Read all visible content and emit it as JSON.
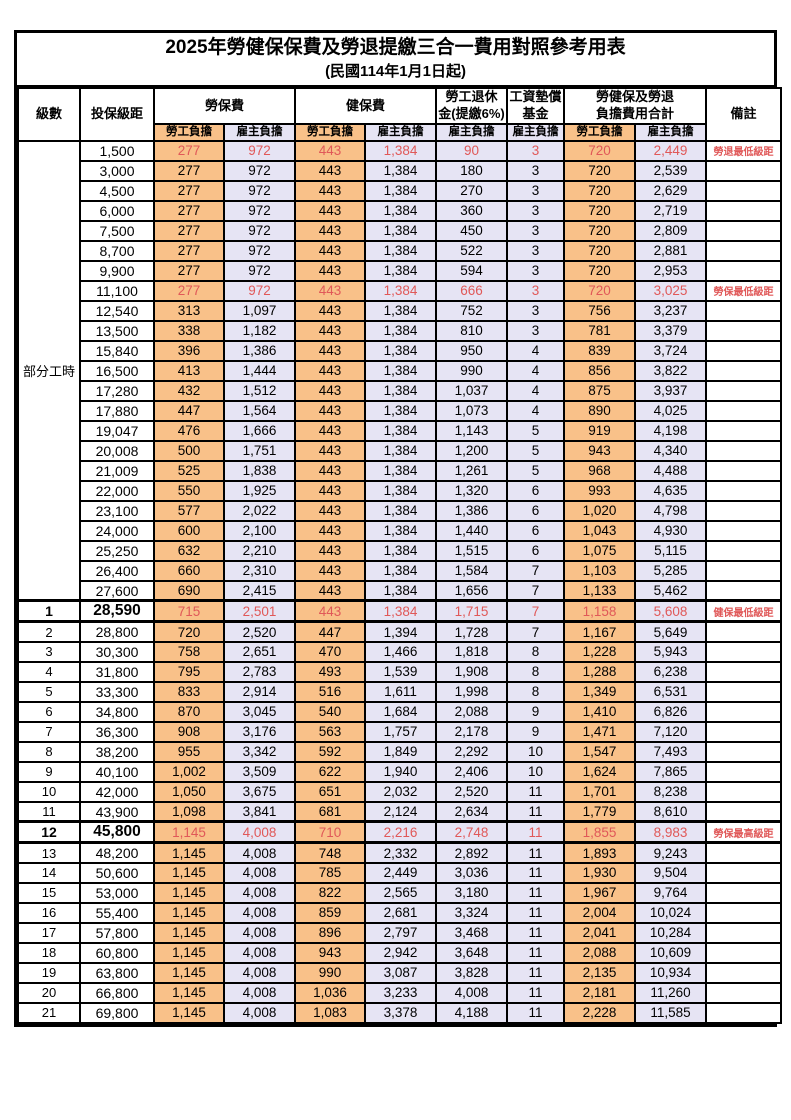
{
  "title": "2025年勞健保保費及勞退提繳三合一費用對照參考用表",
  "subtitle": "(民國114年1月1日起)",
  "part_time_label": "部分工時",
  "colors": {
    "worker_bg": "#F9C189",
    "employer_bg": "#E6E4F4",
    "highlight_red": "#E05858",
    "border": "#000000"
  },
  "header": {
    "level": "級數",
    "salary": "投保級距",
    "labor": "勞保費",
    "health": "健保費",
    "pension_line1": "勞工退休",
    "pension_line2": "金(提繳6%)",
    "wage_fund_line1": "工資墊償",
    "wage_fund_line2": "基金",
    "total_line1": "勞健保及勞退",
    "total_line2": "負擔費用合計",
    "note": "備註",
    "worker": "勞工負擔",
    "employer": "雇主負擔"
  },
  "rows": [
    {
      "lv": "",
      "sal": "1,500",
      "lw": "277",
      "le": "972",
      "hw": "443",
      "he": "1,384",
      "pe": "90",
      "wf": "3",
      "tw": "720",
      "te": "2,449",
      "note": "勞退最低級距",
      "red": true
    },
    {
      "lv": "",
      "sal": "3,000",
      "lw": "277",
      "le": "972",
      "hw": "443",
      "he": "1,384",
      "pe": "180",
      "wf": "3",
      "tw": "720",
      "te": "2,539",
      "note": ""
    },
    {
      "lv": "",
      "sal": "4,500",
      "lw": "277",
      "le": "972",
      "hw": "443",
      "he": "1,384",
      "pe": "270",
      "wf": "3",
      "tw": "720",
      "te": "2,629",
      "note": ""
    },
    {
      "lv": "",
      "sal": "6,000",
      "lw": "277",
      "le": "972",
      "hw": "443",
      "he": "1,384",
      "pe": "360",
      "wf": "3",
      "tw": "720",
      "te": "2,719",
      "note": ""
    },
    {
      "lv": "",
      "sal": "7,500",
      "lw": "277",
      "le": "972",
      "hw": "443",
      "he": "1,384",
      "pe": "450",
      "wf": "3",
      "tw": "720",
      "te": "2,809",
      "note": ""
    },
    {
      "lv": "",
      "sal": "8,700",
      "lw": "277",
      "le": "972",
      "hw": "443",
      "he": "1,384",
      "pe": "522",
      "wf": "3",
      "tw": "720",
      "te": "2,881",
      "note": ""
    },
    {
      "lv": "",
      "sal": "9,900",
      "lw": "277",
      "le": "972",
      "hw": "443",
      "he": "1,384",
      "pe": "594",
      "wf": "3",
      "tw": "720",
      "te": "2,953",
      "note": ""
    },
    {
      "lv": "",
      "sal": "11,100",
      "lw": "277",
      "le": "972",
      "hw": "443",
      "he": "1,384",
      "pe": "666",
      "wf": "3",
      "tw": "720",
      "te": "3,025",
      "note": "勞保最低級距",
      "red": true
    },
    {
      "lv": "",
      "sal": "12,540",
      "lw": "313",
      "le": "1,097",
      "hw": "443",
      "he": "1,384",
      "pe": "752",
      "wf": "3",
      "tw": "756",
      "te": "3,237",
      "note": ""
    },
    {
      "lv": "",
      "sal": "13,500",
      "lw": "338",
      "le": "1,182",
      "hw": "443",
      "he": "1,384",
      "pe": "810",
      "wf": "3",
      "tw": "781",
      "te": "3,379",
      "note": ""
    },
    {
      "lv": "",
      "sal": "15,840",
      "lw": "396",
      "le": "1,386",
      "hw": "443",
      "he": "1,384",
      "pe": "950",
      "wf": "4",
      "tw": "839",
      "te": "3,724",
      "note": ""
    },
    {
      "lv": "",
      "sal": "16,500",
      "lw": "413",
      "le": "1,444",
      "hw": "443",
      "he": "1,384",
      "pe": "990",
      "wf": "4",
      "tw": "856",
      "te": "3,822",
      "note": ""
    },
    {
      "lv": "",
      "sal": "17,280",
      "lw": "432",
      "le": "1,512",
      "hw": "443",
      "he": "1,384",
      "pe": "1,037",
      "wf": "4",
      "tw": "875",
      "te": "3,937",
      "note": ""
    },
    {
      "lv": "",
      "sal": "17,880",
      "lw": "447",
      "le": "1,564",
      "hw": "443",
      "he": "1,384",
      "pe": "1,073",
      "wf": "4",
      "tw": "890",
      "te": "4,025",
      "note": ""
    },
    {
      "lv": "",
      "sal": "19,047",
      "lw": "476",
      "le": "1,666",
      "hw": "443",
      "he": "1,384",
      "pe": "1,143",
      "wf": "5",
      "tw": "919",
      "te": "4,198",
      "note": ""
    },
    {
      "lv": "",
      "sal": "20,008",
      "lw": "500",
      "le": "1,751",
      "hw": "443",
      "he": "1,384",
      "pe": "1,200",
      "wf": "5",
      "tw": "943",
      "te": "4,340",
      "note": ""
    },
    {
      "lv": "",
      "sal": "21,009",
      "lw": "525",
      "le": "1,838",
      "hw": "443",
      "he": "1,384",
      "pe": "1,261",
      "wf": "5",
      "tw": "968",
      "te": "4,488",
      "note": ""
    },
    {
      "lv": "",
      "sal": "22,000",
      "lw": "550",
      "le": "1,925",
      "hw": "443",
      "he": "1,384",
      "pe": "1,320",
      "wf": "6",
      "tw": "993",
      "te": "4,635",
      "note": ""
    },
    {
      "lv": "",
      "sal": "23,100",
      "lw": "577",
      "le": "2,022",
      "hw": "443",
      "he": "1,384",
      "pe": "1,386",
      "wf": "6",
      "tw": "1,020",
      "te": "4,798",
      "note": ""
    },
    {
      "lv": "",
      "sal": "24,000",
      "lw": "600",
      "le": "2,100",
      "hw": "443",
      "he": "1,384",
      "pe": "1,440",
      "wf": "6",
      "tw": "1,043",
      "te": "4,930",
      "note": ""
    },
    {
      "lv": "",
      "sal": "25,250",
      "lw": "632",
      "le": "2,210",
      "hw": "443",
      "he": "1,384",
      "pe": "1,515",
      "wf": "6",
      "tw": "1,075",
      "te": "5,115",
      "note": ""
    },
    {
      "lv": "",
      "sal": "26,400",
      "lw": "660",
      "le": "2,310",
      "hw": "443",
      "he": "1,384",
      "pe": "1,584",
      "wf": "7",
      "tw": "1,103",
      "te": "5,285",
      "note": ""
    },
    {
      "lv": "",
      "sal": "27,600",
      "lw": "690",
      "le": "2,415",
      "hw": "443",
      "he": "1,384",
      "pe": "1,656",
      "wf": "7",
      "tw": "1,133",
      "te": "5,462",
      "note": ""
    },
    {
      "lv": "1",
      "sal": "28,590",
      "lw": "715",
      "le": "2,501",
      "hw": "443",
      "he": "1,384",
      "pe": "1,715",
      "wf": "7",
      "tw": "1,158",
      "te": "5,608",
      "note": "健保最低級距",
      "red": true,
      "sp": true
    },
    {
      "lv": "2",
      "sal": "28,800",
      "lw": "720",
      "le": "2,520",
      "hw": "447",
      "he": "1,394",
      "pe": "1,728",
      "wf": "7",
      "tw": "1,167",
      "te": "5,649",
      "note": ""
    },
    {
      "lv": "3",
      "sal": "30,300",
      "lw": "758",
      "le": "2,651",
      "hw": "470",
      "he": "1,466",
      "pe": "1,818",
      "wf": "8",
      "tw": "1,228",
      "te": "5,943",
      "note": ""
    },
    {
      "lv": "4",
      "sal": "31,800",
      "lw": "795",
      "le": "2,783",
      "hw": "493",
      "he": "1,539",
      "pe": "1,908",
      "wf": "8",
      "tw": "1,288",
      "te": "6,238",
      "note": ""
    },
    {
      "lv": "5",
      "sal": "33,300",
      "lw": "833",
      "le": "2,914",
      "hw": "516",
      "he": "1,611",
      "pe": "1,998",
      "wf": "8",
      "tw": "1,349",
      "te": "6,531",
      "note": ""
    },
    {
      "lv": "6",
      "sal": "34,800",
      "lw": "870",
      "le": "3,045",
      "hw": "540",
      "he": "1,684",
      "pe": "2,088",
      "wf": "9",
      "tw": "1,410",
      "te": "6,826",
      "note": ""
    },
    {
      "lv": "7",
      "sal": "36,300",
      "lw": "908",
      "le": "3,176",
      "hw": "563",
      "he": "1,757",
      "pe": "2,178",
      "wf": "9",
      "tw": "1,471",
      "te": "7,120",
      "note": ""
    },
    {
      "lv": "8",
      "sal": "38,200",
      "lw": "955",
      "le": "3,342",
      "hw": "592",
      "he": "1,849",
      "pe": "2,292",
      "wf": "10",
      "tw": "1,547",
      "te": "7,493",
      "note": ""
    },
    {
      "lv": "9",
      "sal": "40,100",
      "lw": "1,002",
      "le": "3,509",
      "hw": "622",
      "he": "1,940",
      "pe": "2,406",
      "wf": "10",
      "tw": "1,624",
      "te": "7,865",
      "note": ""
    },
    {
      "lv": "10",
      "sal": "42,000",
      "lw": "1,050",
      "le": "3,675",
      "hw": "651",
      "he": "2,032",
      "pe": "2,520",
      "wf": "11",
      "tw": "1,701",
      "te": "8,238",
      "note": ""
    },
    {
      "lv": "11",
      "sal": "43,900",
      "lw": "1,098",
      "le": "3,841",
      "hw": "681",
      "he": "2,124",
      "pe": "2,634",
      "wf": "11",
      "tw": "1,779",
      "te": "8,610",
      "note": ""
    },
    {
      "lv": "12",
      "sal": "45,800",
      "lw": "1,145",
      "le": "4,008",
      "hw": "710",
      "he": "2,216",
      "pe": "2,748",
      "wf": "11",
      "tw": "1,855",
      "te": "8,983",
      "note": "勞保最高級距",
      "red": true,
      "sp": true
    },
    {
      "lv": "13",
      "sal": "48,200",
      "lw": "1,145",
      "le": "4,008",
      "hw": "748",
      "he": "2,332",
      "pe": "2,892",
      "wf": "11",
      "tw": "1,893",
      "te": "9,243",
      "note": ""
    },
    {
      "lv": "14",
      "sal": "50,600",
      "lw": "1,145",
      "le": "4,008",
      "hw": "785",
      "he": "2,449",
      "pe": "3,036",
      "wf": "11",
      "tw": "1,930",
      "te": "9,504",
      "note": ""
    },
    {
      "lv": "15",
      "sal": "53,000",
      "lw": "1,145",
      "le": "4,008",
      "hw": "822",
      "he": "2,565",
      "pe": "3,180",
      "wf": "11",
      "tw": "1,967",
      "te": "9,764",
      "note": ""
    },
    {
      "lv": "16",
      "sal": "55,400",
      "lw": "1,145",
      "le": "4,008",
      "hw": "859",
      "he": "2,681",
      "pe": "3,324",
      "wf": "11",
      "tw": "2,004",
      "te": "10,024",
      "note": ""
    },
    {
      "lv": "17",
      "sal": "57,800",
      "lw": "1,145",
      "le": "4,008",
      "hw": "896",
      "he": "2,797",
      "pe": "3,468",
      "wf": "11",
      "tw": "2,041",
      "te": "10,284",
      "note": ""
    },
    {
      "lv": "18",
      "sal": "60,800",
      "lw": "1,145",
      "le": "4,008",
      "hw": "943",
      "he": "2,942",
      "pe": "3,648",
      "wf": "11",
      "tw": "2,088",
      "te": "10,609",
      "note": ""
    },
    {
      "lv": "19",
      "sal": "63,800",
      "lw": "1,145",
      "le": "4,008",
      "hw": "990",
      "he": "3,087",
      "pe": "3,828",
      "wf": "11",
      "tw": "2,135",
      "te": "10,934",
      "note": ""
    },
    {
      "lv": "20",
      "sal": "66,800",
      "lw": "1,145",
      "le": "4,008",
      "hw": "1,036",
      "he": "3,233",
      "pe": "4,008",
      "wf": "11",
      "tw": "2,181",
      "te": "11,260",
      "note": ""
    },
    {
      "lv": "21",
      "sal": "69,800",
      "lw": "1,145",
      "le": "4,008",
      "hw": "1,083",
      "he": "3,378",
      "pe": "4,188",
      "wf": "11",
      "tw": "2,228",
      "te": "11,585",
      "note": ""
    }
  ]
}
